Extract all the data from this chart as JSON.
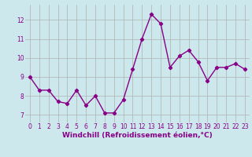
{
  "x": [
    0,
    1,
    2,
    3,
    4,
    5,
    6,
    7,
    8,
    9,
    10,
    11,
    12,
    13,
    14,
    15,
    16,
    17,
    18,
    19,
    20,
    21,
    22,
    23
  ],
  "y": [
    9.0,
    8.3,
    8.3,
    7.7,
    7.6,
    8.3,
    7.5,
    8.0,
    7.1,
    7.1,
    7.8,
    9.4,
    11.0,
    12.3,
    11.8,
    9.5,
    10.1,
    10.4,
    9.8,
    8.8,
    9.5,
    9.5,
    9.7,
    9.4
  ],
  "line_color": "#880088",
  "marker": "D",
  "markersize": 2.2,
  "linewidth": 1.0,
  "xlabel": "Windchill (Refroidissement éolien,°C)",
  "xlabel_fontsize": 6.5,
  "bg_color": "#cce8ec",
  "grid_color": "#b0b0b0",
  "yticks": [
    7,
    8,
    9,
    10,
    11,
    12
  ],
  "xticks": [
    0,
    1,
    2,
    3,
    4,
    5,
    6,
    7,
    8,
    9,
    10,
    11,
    12,
    13,
    14,
    15,
    16,
    17,
    18,
    19,
    20,
    21,
    22,
    23
  ],
  "ylim": [
    6.6,
    12.8
  ],
  "xlim": [
    -0.5,
    23.5
  ],
  "tick_fontsize": 5.5,
  "tick_color": "#880088"
}
